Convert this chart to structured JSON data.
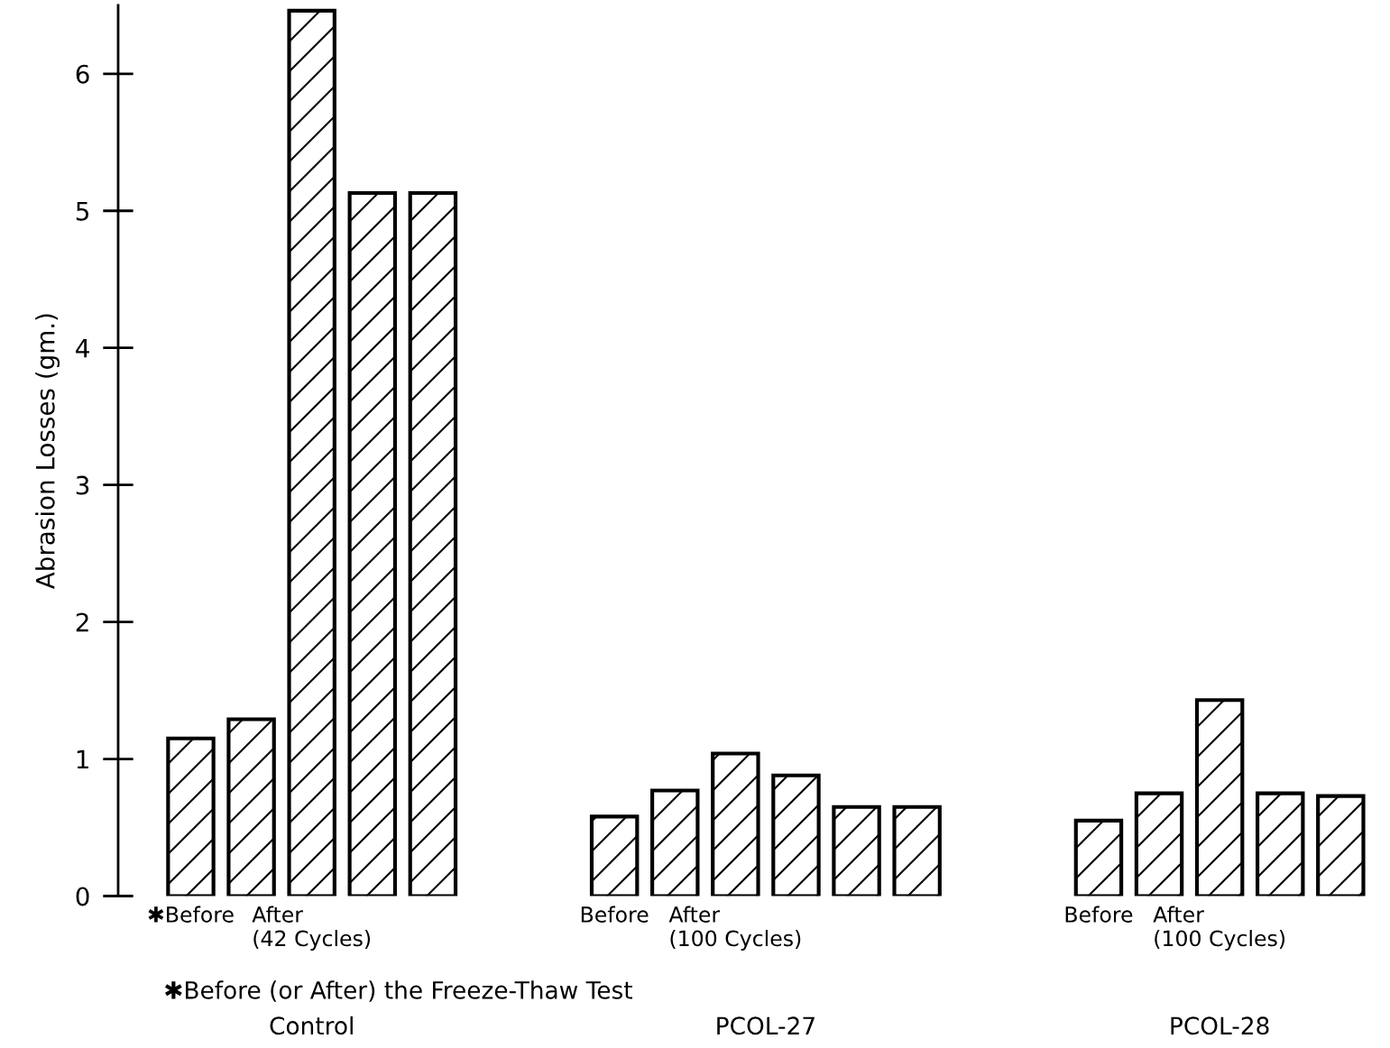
{
  "chart_data": {
    "type": "bar",
    "ylabel": "Abrasion Losses (gm.)",
    "categories": [
      "✱Before",
      null,
      "After\n(42 Cycles)",
      null,
      null,
      null,
      null,
      "Before",
      null,
      "After\n(100 Cycles)",
      null,
      null,
      null,
      null,
      null,
      "Before",
      null,
      "After\n(100 Cycles)",
      null,
      null
    ],
    "values": [
      1.15,
      1.29,
      6.46,
      5.13,
      5.13,
      null,
      null,
      0.58,
      0.77,
      1.04,
      0.88,
      0.65,
      0.65,
      null,
      null,
      0.55,
      0.75,
      1.43,
      0.75,
      0.73
    ],
    "color": "#000000",
    "ylim": [
      0,
      6.5
    ],
    "yticks": [
      0,
      1,
      2,
      3,
      4,
      5,
      6
    ],
    "grid": false,
    "legend": false,
    "annotations": [
      "✱Before (or After) the Freeze-Thaw Test",
      "Control",
      "PCOL-27",
      "PCOL-28"
    ]
  }
}
